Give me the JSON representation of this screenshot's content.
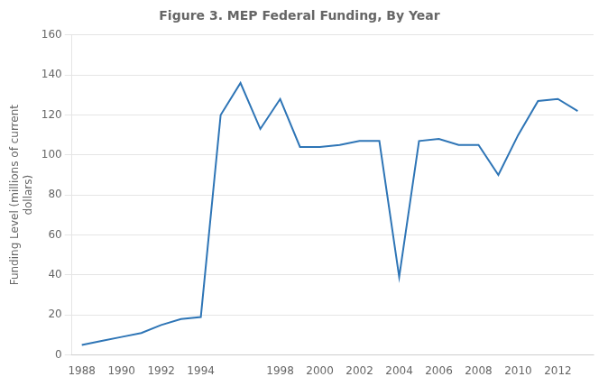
{
  "chart_data": {
    "type": "line",
    "title": "Figure 3. MEP Federal Funding, By Year",
    "ylabel": "Funding Level (millions of current\ndollars)",
    "x": [
      1988,
      1989,
      1990,
      1991,
      1992,
      1993,
      1994,
      1995,
      1996,
      1997,
      1998,
      1999,
      2000,
      2001,
      2002,
      2003,
      2004,
      2005,
      2006,
      2007,
      2008,
      2009,
      2010,
      2011,
      2012,
      2013
    ],
    "values": [
      5,
      7,
      9,
      11,
      15,
      18,
      19,
      120,
      136,
      113,
      128,
      104,
      104,
      105,
      107,
      107,
      39,
      107,
      108,
      105,
      105,
      90,
      110,
      127,
      128,
      122
    ],
    "color": "#2E75B6",
    "xlim": [
      1987.5,
      2013.8
    ],
    "xticks": [
      1988,
      1990,
      1992,
      1994,
      1998,
      2000,
      2002,
      2004,
      2006,
      2008,
      2010,
      2012
    ],
    "ylim": [
      0,
      160
    ],
    "yticks": [
      0,
      20,
      40,
      60,
      80,
      100,
      120,
      140,
      160
    ],
    "grid": "y"
  }
}
